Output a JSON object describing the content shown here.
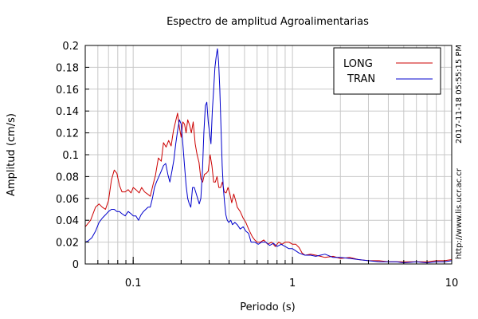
{
  "chart_data": {
    "type": "line",
    "title": "Espectro de amplitud Agroalimentarias",
    "xlabel": "Periodo (s)",
    "ylabel": "Amplitud (cm/s)",
    "x_scale": "log",
    "xlim": [
      0.05,
      10
    ],
    "ylim": [
      0,
      0.2
    ],
    "x_ticks": [
      {
        "value": 0.1,
        "label": "0.1"
      },
      {
        "value": 1,
        "label": "1"
      },
      {
        "value": 10,
        "label": "10"
      }
    ],
    "y_ticks": [
      {
        "value": 0,
        "label": "0"
      },
      {
        "value": 0.02,
        "label": "0.02"
      },
      {
        "value": 0.04,
        "label": "0.04"
      },
      {
        "value": 0.06,
        "label": "0.06"
      },
      {
        "value": 0.08,
        "label": "0.08"
      },
      {
        "value": 0.1,
        "label": "0.1"
      },
      {
        "value": 0.12,
        "label": "0.12"
      },
      {
        "value": 0.14,
        "label": "0.14"
      },
      {
        "value": 0.16,
        "label": "0.16"
      },
      {
        "value": 0.18,
        "label": "0.18"
      },
      {
        "value": 0.2,
        "label": "0.2"
      }
    ],
    "grid": true,
    "legend_position": "top-right",
    "annotations": [
      "2017-11-18 05:55:15 PM",
      "http://www.lis.ucr.ac.cr"
    ],
    "series": [
      {
        "name": "LONG",
        "color": "#cc0000",
        "points": [
          [
            0.05,
            0.034
          ],
          [
            0.054,
            0.04
          ],
          [
            0.058,
            0.052
          ],
          [
            0.061,
            0.055
          ],
          [
            0.064,
            0.052
          ],
          [
            0.067,
            0.05
          ],
          [
            0.07,
            0.058
          ],
          [
            0.073,
            0.077
          ],
          [
            0.076,
            0.086
          ],
          [
            0.079,
            0.083
          ],
          [
            0.082,
            0.072
          ],
          [
            0.085,
            0.066
          ],
          [
            0.089,
            0.066
          ],
          [
            0.093,
            0.068
          ],
          [
            0.097,
            0.065
          ],
          [
            0.1,
            0.07
          ],
          [
            0.104,
            0.068
          ],
          [
            0.109,
            0.065
          ],
          [
            0.113,
            0.07
          ],
          [
            0.118,
            0.066
          ],
          [
            0.123,
            0.064
          ],
          [
            0.128,
            0.062
          ],
          [
            0.133,
            0.072
          ],
          [
            0.138,
            0.081
          ],
          [
            0.144,
            0.097
          ],
          [
            0.15,
            0.094
          ],
          [
            0.155,
            0.111
          ],
          [
            0.161,
            0.107
          ],
          [
            0.167,
            0.113
          ],
          [
            0.173,
            0.108
          ],
          [
            0.179,
            0.122
          ],
          [
            0.185,
            0.131
          ],
          [
            0.19,
            0.138
          ],
          [
            0.195,
            0.125
          ],
          [
            0.2,
            0.116
          ],
          [
            0.205,
            0.13
          ],
          [
            0.21,
            0.128
          ],
          [
            0.215,
            0.12
          ],
          [
            0.22,
            0.132
          ],
          [
            0.226,
            0.127
          ],
          [
            0.232,
            0.12
          ],
          [
            0.238,
            0.13
          ],
          [
            0.245,
            0.11
          ],
          [
            0.252,
            0.1
          ],
          [
            0.259,
            0.093
          ],
          [
            0.266,
            0.078
          ],
          [
            0.273,
            0.075
          ],
          [
            0.28,
            0.082
          ],
          [
            0.288,
            0.083
          ],
          [
            0.296,
            0.085
          ],
          [
            0.304,
            0.1
          ],
          [
            0.312,
            0.09
          ],
          [
            0.32,
            0.075
          ],
          [
            0.328,
            0.075
          ],
          [
            0.336,
            0.08
          ],
          [
            0.345,
            0.07
          ],
          [
            0.354,
            0.07
          ],
          [
            0.363,
            0.075
          ],
          [
            0.373,
            0.066
          ],
          [
            0.383,
            0.065
          ],
          [
            0.394,
            0.07
          ],
          [
            0.405,
            0.064
          ],
          [
            0.416,
            0.056
          ],
          [
            0.428,
            0.064
          ],
          [
            0.44,
            0.058
          ],
          [
            0.45,
            0.052
          ],
          [
            0.47,
            0.048
          ],
          [
            0.49,
            0.042
          ],
          [
            0.51,
            0.038
          ],
          [
            0.53,
            0.032
          ],
          [
            0.56,
            0.025
          ],
          [
            0.58,
            0.022
          ],
          [
            0.6,
            0.02
          ],
          [
            0.63,
            0.02
          ],
          [
            0.66,
            0.022
          ],
          [
            0.7,
            0.018
          ],
          [
            0.74,
            0.02
          ],
          [
            0.78,
            0.016
          ],
          [
            0.82,
            0.02
          ],
          [
            0.86,
            0.018
          ],
          [
            0.9,
            0.02
          ],
          [
            0.95,
            0.02
          ],
          [
            1.0,
            0.018
          ],
          [
            1.05,
            0.018
          ],
          [
            1.1,
            0.015
          ],
          [
            1.15,
            0.01
          ],
          [
            1.2,
            0.008
          ],
          [
            1.3,
            0.009
          ],
          [
            1.4,
            0.008
          ],
          [
            1.5,
            0.007
          ],
          [
            1.6,
            0.006
          ],
          [
            1.8,
            0.007
          ],
          [
            2.0,
            0.005
          ],
          [
            2.3,
            0.006
          ],
          [
            2.6,
            0.004
          ],
          [
            3.0,
            0.003
          ],
          [
            3.5,
            0.003
          ],
          [
            4.0,
            0.002
          ],
          [
            4.5,
            0.002
          ],
          [
            5.0,
            0.002
          ],
          [
            6.0,
            0.002
          ],
          [
            7.0,
            0.002
          ],
          [
            8.0,
            0.003
          ],
          [
            9.0,
            0.003
          ],
          [
            10.0,
            0.004
          ]
        ]
      },
      {
        "name": "TRAN",
        "color": "#0000cc",
        "points": [
          [
            0.05,
            0.02
          ],
          [
            0.052,
            0.021
          ],
          [
            0.055,
            0.024
          ],
          [
            0.058,
            0.03
          ],
          [
            0.061,
            0.038
          ],
          [
            0.064,
            0.042
          ],
          [
            0.067,
            0.045
          ],
          [
            0.07,
            0.048
          ],
          [
            0.073,
            0.05
          ],
          [
            0.076,
            0.05
          ],
          [
            0.079,
            0.048
          ],
          [
            0.082,
            0.048
          ],
          [
            0.085,
            0.046
          ],
          [
            0.089,
            0.044
          ],
          [
            0.093,
            0.048
          ],
          [
            0.097,
            0.046
          ],
          [
            0.1,
            0.044
          ],
          [
            0.104,
            0.044
          ],
          [
            0.108,
            0.04
          ],
          [
            0.112,
            0.045
          ],
          [
            0.116,
            0.048
          ],
          [
            0.12,
            0.05
          ],
          [
            0.124,
            0.052
          ],
          [
            0.128,
            0.052
          ],
          [
            0.132,
            0.06
          ],
          [
            0.136,
            0.07
          ],
          [
            0.14,
            0.075
          ],
          [
            0.145,
            0.08
          ],
          [
            0.15,
            0.085
          ],
          [
            0.155,
            0.09
          ],
          [
            0.16,
            0.092
          ],
          [
            0.165,
            0.082
          ],
          [
            0.17,
            0.075
          ],
          [
            0.175,
            0.085
          ],
          [
            0.18,
            0.095
          ],
          [
            0.185,
            0.11
          ],
          [
            0.19,
            0.122
          ],
          [
            0.195,
            0.132
          ],
          [
            0.2,
            0.128
          ],
          [
            0.205,
            0.11
          ],
          [
            0.21,
            0.09
          ],
          [
            0.215,
            0.072
          ],
          [
            0.22,
            0.06
          ],
          [
            0.225,
            0.055
          ],
          [
            0.23,
            0.052
          ],
          [
            0.236,
            0.07
          ],
          [
            0.242,
            0.07
          ],
          [
            0.248,
            0.065
          ],
          [
            0.254,
            0.06
          ],
          [
            0.26,
            0.055
          ],
          [
            0.266,
            0.06
          ],
          [
            0.272,
            0.085
          ],
          [
            0.278,
            0.12
          ],
          [
            0.284,
            0.145
          ],
          [
            0.29,
            0.148
          ],
          [
            0.296,
            0.13
          ],
          [
            0.302,
            0.12
          ],
          [
            0.308,
            0.11
          ],
          [
            0.314,
            0.14
          ],
          [
            0.32,
            0.16
          ],
          [
            0.326,
            0.18
          ],
          [
            0.332,
            0.19
          ],
          [
            0.338,
            0.197
          ],
          [
            0.344,
            0.185
          ],
          [
            0.35,
            0.16
          ],
          [
            0.356,
            0.125
          ],
          [
            0.362,
            0.09
          ],
          [
            0.368,
            0.07
          ],
          [
            0.375,
            0.056
          ],
          [
            0.382,
            0.045
          ],
          [
            0.39,
            0.04
          ],
          [
            0.398,
            0.038
          ],
          [
            0.41,
            0.04
          ],
          [
            0.42,
            0.036
          ],
          [
            0.435,
            0.038
          ],
          [
            0.45,
            0.036
          ],
          [
            0.47,
            0.032
          ],
          [
            0.49,
            0.034
          ],
          [
            0.51,
            0.03
          ],
          [
            0.53,
            0.028
          ],
          [
            0.55,
            0.02
          ],
          [
            0.58,
            0.02
          ],
          [
            0.61,
            0.018
          ],
          [
            0.64,
            0.02
          ],
          [
            0.68,
            0.02
          ],
          [
            0.72,
            0.017
          ],
          [
            0.76,
            0.019
          ],
          [
            0.8,
            0.016
          ],
          [
            0.85,
            0.018
          ],
          [
            0.9,
            0.016
          ],
          [
            0.95,
            0.014
          ],
          [
            1.0,
            0.014
          ],
          [
            1.05,
            0.012
          ],
          [
            1.1,
            0.01
          ],
          [
            1.2,
            0.008
          ],
          [
            1.3,
            0.008
          ],
          [
            1.4,
            0.007
          ],
          [
            1.5,
            0.008
          ],
          [
            1.6,
            0.009
          ],
          [
            1.8,
            0.006
          ],
          [
            2.0,
            0.006
          ],
          [
            2.3,
            0.005
          ],
          [
            2.6,
            0.004
          ],
          [
            3.0,
            0.003
          ],
          [
            3.5,
            0.002
          ],
          [
            4.0,
            0.002
          ],
          [
            4.5,
            0.002
          ],
          [
            5.0,
            0.001
          ],
          [
            6.0,
            0.002
          ],
          [
            7.0,
            0.001
          ],
          [
            8.0,
            0.002
          ],
          [
            9.0,
            0.002
          ],
          [
            10.0,
            0.003
          ]
        ]
      }
    ]
  }
}
